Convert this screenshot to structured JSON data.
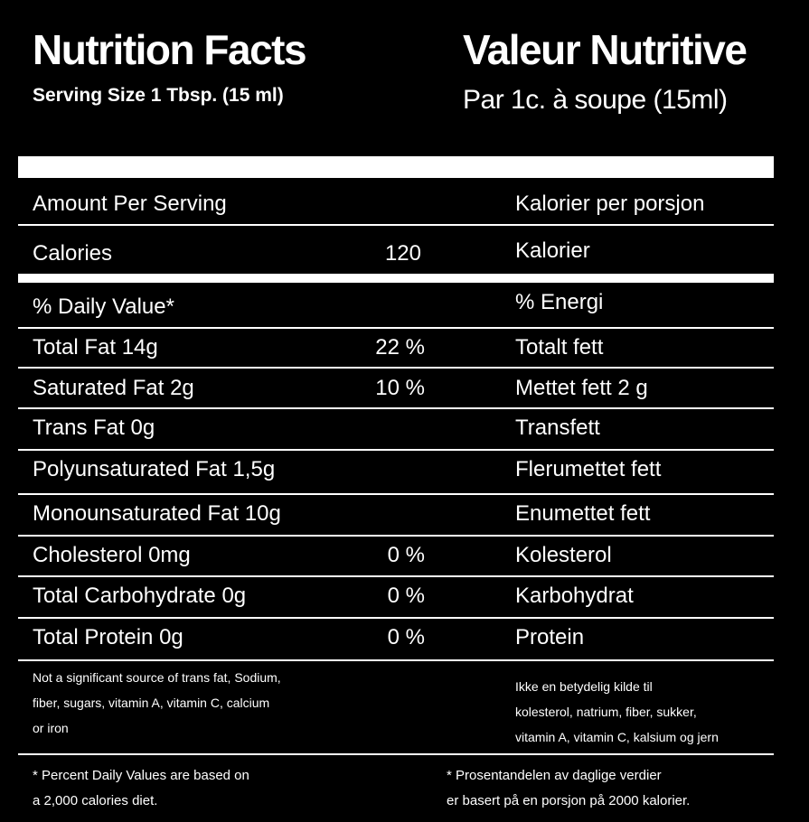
{
  "header": {
    "title_en": "Nutrition Facts",
    "serving_en": "Serving Size 1 Tbsp. (15 ml)",
    "title_fr": "Valeur Nutritive",
    "serving_fr": "Par 1c. à soupe (15ml)"
  },
  "amount": {
    "label_en": "Amount Per Serving",
    "label_no": "Kalorier per porsjon"
  },
  "calories": {
    "label_en": "Calories",
    "value": "120",
    "label_no": "Kalorier"
  },
  "daily_value": {
    "label_en": "% Daily Value*",
    "label_no": "% Energi"
  },
  "nutrients": [
    {
      "label_en": "Total Fat  14g",
      "pct": "22 %",
      "label_no": "Totalt fett"
    },
    {
      "label_en": "Saturated Fat  2g",
      "pct": "10 %",
      "label_no": "Mettet fett 2 g"
    },
    {
      "label_en": "Trans Fat  0g",
      "pct": "",
      "label_no": "Transfett"
    },
    {
      "label_en": "Polyunsaturated Fat  1,5g",
      "pct": "",
      "label_no": "Flerumettet fett"
    },
    {
      "label_en": "Monounsaturated Fat 10g",
      "pct": "",
      "label_no": "Enumettet fett"
    },
    {
      "label_en": "Cholesterol 0mg",
      "pct": "0 %",
      "label_no": "Kolesterol"
    },
    {
      "label_en": "Total Carbohydrate 0g",
      "pct": "0 %",
      "label_no": "Karbohydrat"
    },
    {
      "label_en": "Total Protein 0g",
      "pct": "0 %",
      "label_no": "Protein"
    }
  ],
  "notes": {
    "not_significant_en": "Not a significant source of trans fat, Sodium,\nfiber, sugars, vitamin A, vitamin C, calcium\nor iron",
    "not_significant_no": "Ikke en betydelig kilde til\nkolesterol, natrium, fiber, sukker,\nvitamin A, vitamin C, kalsium og jern",
    "percent_en": "* Percent Daily Values are based on\na 2,000 calories diet.",
    "percent_no": "* Prosentandelen av daglige verdier\ner basert på en porsjon på 2000 kalorier."
  },
  "colors": {
    "background": "#000000",
    "text": "#ffffff"
  }
}
